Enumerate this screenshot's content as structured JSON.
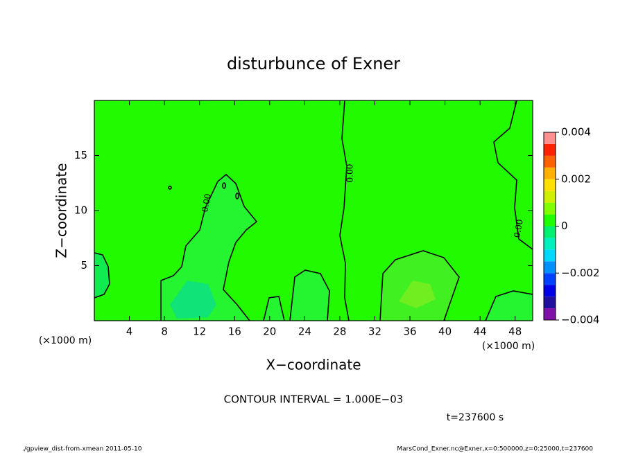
{
  "chart_data": {
    "type": "contour",
    "title": "disturbunce of Exner",
    "x_label": "X−coordinate",
    "y_label": "Z−coordinate",
    "x_unit_left": "(×1000 m)",
    "x_unit_right": "(×1000 m)",
    "xlim": [
      0,
      50
    ],
    "ylim": [
      0,
      20
    ],
    "xticks": [
      4,
      8,
      12,
      16,
      20,
      24,
      28,
      32,
      36,
      40,
      44,
      48
    ],
    "yticks": [
      5,
      10,
      15
    ],
    "contour_labels": [
      "0.00",
      "0.00",
      "0.00"
    ],
    "colorbar": {
      "lim": [
        -0.004,
        0.004
      ],
      "ticks": [
        {
          "value": 0.004,
          "label": "0.004"
        },
        {
          "value": 0.002,
          "label": "0.002"
        },
        0,
        {
          "value": -0.002,
          "label": "−0.002"
        },
        {
          "value": -0.004,
          "label": "−0.004"
        }
      ],
      "colors": [
        "#7f10a8",
        "#2010a0",
        "#0000e8",
        "#0040ff",
        "#0090ff",
        "#00d8ff",
        "#00f0c0",
        "#00f070",
        "#20ff00",
        "#80ff00",
        "#d0f000",
        "#ffe000",
        "#ffb000",
        "#ff6000",
        "#ff2000",
        "#ff9090"
      ]
    },
    "contour_interval": "CONTOUR INTERVAL = 1.000E−03",
    "time": "t=237600 s",
    "footer_left": "./gpview_dist-from-xmean  2011-05-10",
    "footer_right": "MarsCond_Exner.nc@Exner,x=0:500000,z=0:25000,t=237600"
  }
}
